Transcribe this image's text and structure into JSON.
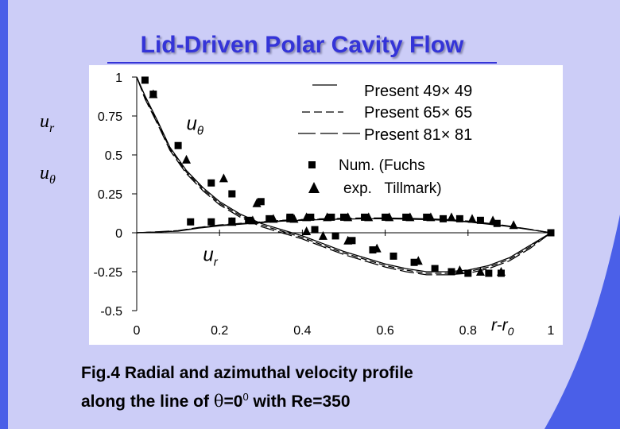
{
  "slide": {
    "title": "Lid-Driven Polar Cavity Flow",
    "caption_line1": "Fig.4 Radial and azimuthal velocity profile",
    "caption_line2_prefix": "along the line of",
    "caption_theta": "θ",
    "caption_eq": "=0",
    "caption_sup": "0",
    "caption_suffix": "with Re=350"
  },
  "side_labels": {
    "ur_main": "u",
    "ur_sub": "r",
    "ut_main": "u",
    "ut_sub": "θ"
  },
  "colors": {
    "slide_background": "#cccdf7",
    "title": "#3434d8",
    "accent_blue": "#4a5fe8",
    "plot_background": "#ffffff",
    "series": "#000000"
  },
  "chart_data": {
    "type": "line",
    "x_axis": {
      "label_main": "r-r",
      "label_sub": "0",
      "range": [
        0,
        1
      ],
      "ticks": [
        0,
        0.2,
        0.4,
        0.6,
        0.8,
        1
      ],
      "tick_labels": [
        "0",
        "0.2",
        "0.4",
        "0.6",
        "0.8",
        "1"
      ]
    },
    "y_axis": {
      "range": [
        -0.5,
        1
      ],
      "ticks": [
        1,
        0.75,
        0.5,
        0.25,
        0,
        -0.25,
        -0.5
      ],
      "tick_labels": [
        "1",
        "0.75",
        "0.5",
        "0.25",
        "0",
        "-0.25",
        "-0.5"
      ]
    },
    "grid": false,
    "legend_position": "top-right",
    "annotations": [
      {
        "text": "u",
        "sub": "θ",
        "x": 0.12,
        "y": 0.66
      },
      {
        "text": "u",
        "sub": "r",
        "x": 0.16,
        "y": -0.18
      }
    ],
    "series": [
      {
        "name": "Present 49× 49",
        "style": "solid",
        "curve": "u_theta",
        "x": [
          0,
          0.02,
          0.05,
          0.08,
          0.12,
          0.16,
          0.2,
          0.25,
          0.3,
          0.35,
          0.4,
          0.45,
          0.5,
          0.55,
          0.6,
          0.65,
          0.7,
          0.75,
          0.8,
          0.85,
          0.9,
          0.95,
          1
        ],
        "y": [
          1,
          0.88,
          0.72,
          0.55,
          0.4,
          0.29,
          0.2,
          0.12,
          0.06,
          0.02,
          -0.02,
          -0.07,
          -0.12,
          -0.16,
          -0.2,
          -0.23,
          -0.25,
          -0.25,
          -0.24,
          -0.21,
          -0.16,
          -0.08,
          0
        ]
      },
      {
        "name": "Present 49× 49",
        "style": "solid",
        "curve": "u_r",
        "x": [
          0,
          0.05,
          0.1,
          0.15,
          0.2,
          0.25,
          0.3,
          0.35,
          0.4,
          0.45,
          0.5,
          0.55,
          0.6,
          0.65,
          0.7,
          0.75,
          0.8,
          0.85,
          0.9,
          0.95,
          1
        ],
        "y": [
          0,
          0.005,
          0.01,
          0.03,
          0.045,
          0.055,
          0.065,
          0.075,
          0.08,
          0.085,
          0.088,
          0.09,
          0.09,
          0.088,
          0.085,
          0.08,
          0.07,
          0.055,
          0.04,
          0.02,
          0
        ]
      },
      {
        "name": "Present  65× 65",
        "style": "dashed",
        "curve": "u_theta",
        "x": [
          0,
          0.02,
          0.05,
          0.08,
          0.12,
          0.16,
          0.2,
          0.25,
          0.3,
          0.35,
          0.4,
          0.45,
          0.5,
          0.55,
          0.6,
          0.65,
          0.7,
          0.75,
          0.8,
          0.85,
          0.9,
          0.95,
          1
        ],
        "y": [
          1,
          0.87,
          0.71,
          0.54,
          0.39,
          0.28,
          0.19,
          0.11,
          0.05,
          0.01,
          -0.03,
          -0.08,
          -0.13,
          -0.17,
          -0.21,
          -0.24,
          -0.26,
          -0.26,
          -0.25,
          -0.22,
          -0.17,
          -0.09,
          0
        ]
      },
      {
        "name": "Present  65× 65",
        "style": "dashed",
        "curve": "u_r",
        "x": [
          0,
          0.05,
          0.1,
          0.15,
          0.2,
          0.25,
          0.3,
          0.35,
          0.4,
          0.45,
          0.5,
          0.55,
          0.6,
          0.65,
          0.7,
          0.75,
          0.8,
          0.85,
          0.9,
          0.95,
          1
        ],
        "y": [
          0,
          0.005,
          0.012,
          0.032,
          0.048,
          0.058,
          0.068,
          0.078,
          0.083,
          0.088,
          0.09,
          0.092,
          0.092,
          0.09,
          0.087,
          0.082,
          0.072,
          0.057,
          0.041,
          0.021,
          0
        ]
      },
      {
        "name": "Present 81× 81",
        "style": "longdash",
        "curve": "u_theta",
        "x": [
          0,
          0.02,
          0.05,
          0.08,
          0.12,
          0.16,
          0.2,
          0.25,
          0.3,
          0.35,
          0.4,
          0.45,
          0.5,
          0.55,
          0.6,
          0.65,
          0.7,
          0.75,
          0.8,
          0.85,
          0.9,
          0.95,
          1
        ],
        "y": [
          1,
          0.86,
          0.7,
          0.53,
          0.38,
          0.27,
          0.18,
          0.1,
          0.04,
          0,
          -0.04,
          -0.09,
          -0.14,
          -0.18,
          -0.22,
          -0.25,
          -0.27,
          -0.27,
          -0.26,
          -0.23,
          -0.18,
          -0.1,
          0
        ]
      },
      {
        "name": "Present 81× 81",
        "style": "longdash",
        "curve": "u_r",
        "x": [
          0,
          0.05,
          0.1,
          0.15,
          0.2,
          0.25,
          0.3,
          0.35,
          0.4,
          0.45,
          0.5,
          0.55,
          0.6,
          0.65,
          0.7,
          0.75,
          0.8,
          0.85,
          0.9,
          0.95,
          1
        ],
        "y": [
          0,
          0.006,
          0.014,
          0.034,
          0.05,
          0.06,
          0.07,
          0.08,
          0.085,
          0.09,
          0.093,
          0.095,
          0.095,
          0.093,
          0.09,
          0.085,
          0.075,
          0.06,
          0.043,
          0.022,
          0
        ]
      },
      {
        "name": "Num. (Fuchs",
        "style": "marker-square",
        "curve": "u_theta",
        "x": [
          0.02,
          0.04,
          0.1,
          0.18,
          0.23,
          0.3,
          0.37,
          0.43,
          0.48,
          0.52,
          0.57,
          0.62,
          0.67,
          0.72,
          0.76,
          0.8,
          0.85,
          0.88,
          1.0
        ],
        "y": [
          0.98,
          0.89,
          0.56,
          0.32,
          0.25,
          0.2,
          0.1,
          0.02,
          -0.02,
          -0.05,
          -0.11,
          -0.15,
          -0.19,
          -0.23,
          -0.25,
          -0.26,
          -0.26,
          -0.26,
          0
        ]
      },
      {
        "name": "Num. (Fuchs",
        "style": "marker-square",
        "curve": "u_r",
        "x": [
          0.13,
          0.18,
          0.23,
          0.27,
          0.32,
          0.37,
          0.42,
          0.47,
          0.5,
          0.55,
          0.6,
          0.65,
          0.7,
          0.74,
          0.78,
          0.83,
          0.87
        ],
        "y": [
          0.07,
          0.07,
          0.075,
          0.08,
          0.09,
          0.09,
          0.1,
          0.1,
          0.1,
          0.1,
          0.1,
          0.1,
          0.1,
          0.09,
          0.09,
          0.08,
          0.06
        ]
      },
      {
        "name": "exp.   Tillmark)",
        "style": "marker-triangle",
        "curve": "u_theta",
        "x": [
          0.04,
          0.12,
          0.21,
          0.29,
          0.41,
          0.45,
          0.51,
          0.58,
          0.68,
          0.78,
          0.83,
          0.88
        ],
        "y": [
          0.89,
          0.47,
          0.35,
          0.19,
          0.01,
          -0.02,
          -0.05,
          -0.1,
          -0.18,
          -0.24,
          -0.25,
          -0.25
        ]
      },
      {
        "name": "exp.   Tillmark)",
        "style": "marker-triangle",
        "curve": "u_r",
        "x": [
          0.23,
          0.28,
          0.33,
          0.38,
          0.41,
          0.46,
          0.51,
          0.56,
          0.61,
          0.66,
          0.71,
          0.76,
          0.81,
          0.86,
          0.91
        ],
        "y": [
          0.07,
          0.08,
          0.09,
          0.09,
          0.1,
          0.1,
          0.1,
          0.1,
          0.1,
          0.1,
          0.1,
          0.1,
          0.09,
          0.08,
          0.05
        ]
      }
    ],
    "legend": [
      {
        "symbol": "solid",
        "label": "Present 49× 49"
      },
      {
        "symbol": "dashed",
        "label": "Present  65× 65"
      },
      {
        "symbol": "longdash",
        "label": "Present 81× 81"
      },
      {
        "symbol": "square",
        "label": "Num. (Fuchs"
      },
      {
        "symbol": "triangle",
        "label": "exp.   Tillmark)"
      }
    ]
  }
}
